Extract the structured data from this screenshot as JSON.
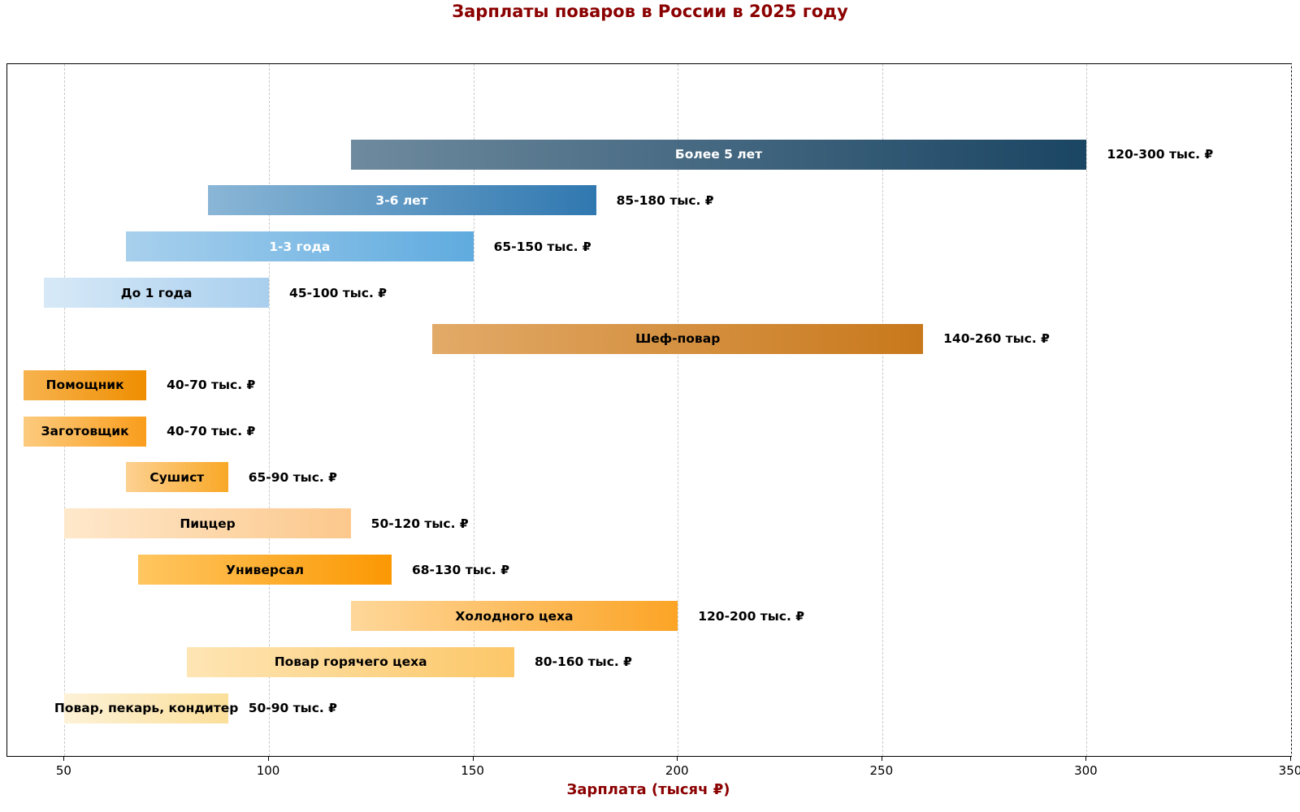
{
  "title": "Зарплаты поваров в России в 2025 году",
  "chart_data": {
    "type": "bar",
    "orientation": "horizontal-range",
    "title": "Зарплаты поваров в России в 2025 году",
    "xlabel": "Зарплата (тысяч ₽)",
    "ylabel": "",
    "xlim": [
      36,
      350
    ],
    "xticks": [
      50,
      100,
      150,
      200,
      250,
      300,
      350
    ],
    "grid": "vertical-dashed",
    "title_color": "#8B0000",
    "xlabel_color": "#8B0000",
    "bars": [
      {
        "label": "Более 5 лет",
        "min": 120,
        "max": 300,
        "range_label": "120-300 тыс. ₽",
        "color_start": "#6e8a9e",
        "color_end": "#1a4563",
        "text_color": "#ffffff"
      },
      {
        "label": "3-6 лет",
        "min": 85,
        "max": 180,
        "range_label": "85-180 тыс. ₽",
        "color_start": "#8ab6d6",
        "color_end": "#3078b0",
        "text_color": "#ffffff"
      },
      {
        "label": "1-3 года",
        "min": 65,
        "max": 150,
        "range_label": "65-150 тыс. ₽",
        "color_start": "#a8d0ed",
        "color_end": "#5fabdf",
        "text_color": "#ffffff"
      },
      {
        "label": "До 1 года",
        "min": 45,
        "max": 100,
        "range_label": "45-100 тыс. ₽",
        "color_start": "#d7e9f7",
        "color_end": "#a9cfee",
        "text_color": "#000000"
      },
      {
        "label": "Шеф-повар",
        "min": 140,
        "max": 260,
        "range_label": "140-260 тыс. ₽",
        "color_start": "#e2aa68",
        "color_end": "#c8781b",
        "text_color": "#000000"
      },
      {
        "label": "Помощник",
        "min": 40,
        "max": 70,
        "range_label": "40-70 тыс. ₽",
        "color_start": "#f7b34f",
        "color_end": "#ef8e00",
        "text_color": "#000000"
      },
      {
        "label": "Заготовщик",
        "min": 40,
        "max": 70,
        "range_label": "40-70 тыс. ₽",
        "color_start": "#fccb7e",
        "color_end": "#f99d1c",
        "text_color": "#000000"
      },
      {
        "label": "Сушист",
        "min": 65,
        "max": 90,
        "range_label": "65-90 тыс. ₽",
        "color_start": "#fdd192",
        "color_end": "#f9a826",
        "text_color": "#000000"
      },
      {
        "label": "Пиццер",
        "min": 50,
        "max": 120,
        "range_label": "50-120 тыс. ₽",
        "color_start": "#fee8cb",
        "color_end": "#fcc88c",
        "text_color": "#000000"
      },
      {
        "label": "Универсал",
        "min": 68,
        "max": 130,
        "range_label": "68-130 тыс. ₽",
        "color_start": "#ffc660",
        "color_end": "#fb9803",
        "text_color": "#000000"
      },
      {
        "label": "Холодного цеха",
        "min": 120,
        "max": 200,
        "range_label": "120-200 тыс. ₽",
        "color_start": "#fed79a",
        "color_end": "#fca426",
        "text_color": "#000000"
      },
      {
        "label": "Повар горячего цеха",
        "min": 80,
        "max": 160,
        "range_label": "80-160 тыс. ₽",
        "color_start": "#fee5b4",
        "color_end": "#fcc768",
        "text_color": "#000000"
      },
      {
        "label": "Повар, пекарь, кондитер",
        "min": 50,
        "max": 90,
        "range_label": "50-90 тыс. ₽",
        "color_start": "#fdf2d7",
        "color_end": "#fbdf9a",
        "text_color": "#000000"
      }
    ]
  }
}
